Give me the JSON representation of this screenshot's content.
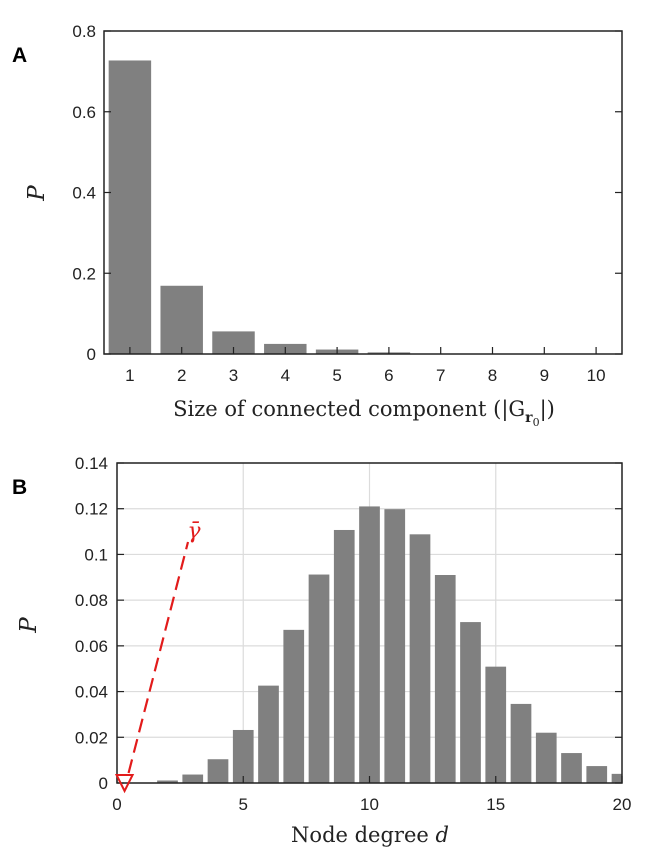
{
  "colors": {
    "bar": "#808080",
    "grid": "#dcdcdc",
    "axis": "#222222",
    "annotation": "#e21b1b"
  },
  "chart_data": [
    {
      "panel": "A",
      "type": "bar",
      "title": "",
      "xlabel_text": "Size of connected component (|G",
      "xlabel_sub": "r",
      "xlabel_subsub": "0",
      "xlabel_end": "|)",
      "ylabel": "P",
      "categories": [
        "1",
        "2",
        "3",
        "4",
        "5",
        "6",
        "7",
        "8",
        "9",
        "10"
      ],
      "values": [
        0.727,
        0.169,
        0.056,
        0.025,
        0.011,
        0.004,
        0.001,
        0.0,
        0.0,
        0.0
      ],
      "ylim": [
        0,
        0.8
      ],
      "yticks": [
        "0",
        "0.2",
        "0.4",
        "0.6",
        "0.8"
      ],
      "grid": false
    },
    {
      "panel": "B",
      "type": "bar",
      "title": "",
      "xlabel_text": "Node degree ",
      "xlabel_var": "d",
      "ylabel": "P",
      "x": [
        1,
        2,
        3,
        4,
        5,
        6,
        7,
        8,
        9,
        10,
        11,
        12,
        13,
        14,
        15,
        16,
        17,
        18,
        19,
        20
      ],
      "values": [
        0.0002,
        0.0011,
        0.0037,
        0.0104,
        0.0232,
        0.0426,
        0.067,
        0.0912,
        0.1107,
        0.121,
        0.1198,
        0.1088,
        0.091,
        0.0704,
        0.0509,
        0.0346,
        0.022,
        0.0131,
        0.0074,
        0.004
      ],
      "xlim": [
        0,
        20
      ],
      "ylim": [
        0,
        0.14
      ],
      "xticks": [
        "0",
        "5",
        "10",
        "15",
        "20"
      ],
      "yticks": [
        "0",
        "0.02",
        "0.04",
        "0.06",
        "0.08",
        "0.1",
        "0.12",
        "0.14"
      ],
      "grid": true,
      "annotation": {
        "label": "γ̄",
        "marker_x": 0.3,
        "marker_y": 0
      }
    }
  ]
}
